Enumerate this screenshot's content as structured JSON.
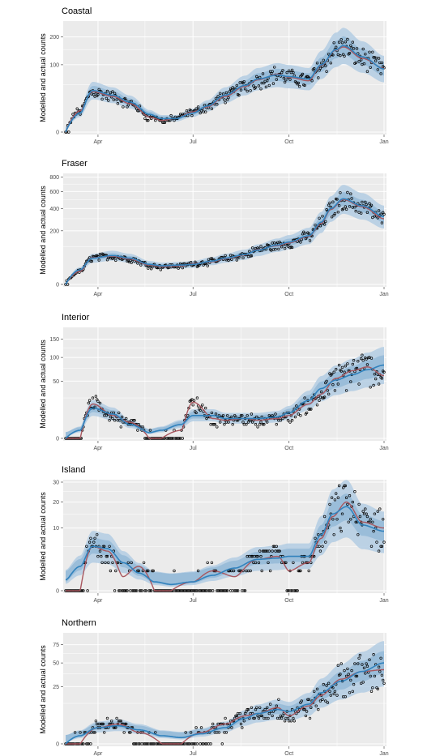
{
  "figure": {
    "ylabel": "Modelled and actual counts",
    "xticks": [
      "Apr",
      "Jul",
      "Oct",
      "Jan"
    ],
    "colors": {
      "panel_bg": "#ebebeb",
      "grid": "#ffffff",
      "ribbon_outer": "#b3cde3",
      "ribbon_inner": "#8fb5d6",
      "model_line": "#3182bd",
      "actual_line": "#a8575f",
      "points": "#000000"
    }
  },
  "chart_data": [
    {
      "type": "line",
      "title": "Coastal",
      "ylabel": "Modelled and actual counts",
      "x_domain": [
        "2021-03-01",
        "2021-12-31"
      ],
      "ytick_values": [
        0,
        100,
        200
      ],
      "ylim_counts": [
        0,
        260
      ],
      "y_scale": "sqrt",
      "x_ticks": [
        "Apr",
        "Jul",
        "Oct",
        "Jan"
      ],
      "series": [
        {
          "key": "model",
          "values_date": [
            "2021-03-01",
            "2021-03-15",
            "2021-03-27",
            "2021-04-15",
            "2021-05-01",
            "2021-05-20",
            "2021-06-01",
            "2021-06-15",
            "2021-07-01",
            "2021-07-15",
            "2021-08-01",
            "2021-08-20",
            "2021-09-01",
            "2021-09-20",
            "2021-10-01",
            "2021-10-20",
            "2021-11-01",
            "2021-11-15",
            "2021-11-22",
            "2021-12-10",
            "2021-12-31"
          ],
          "y": [
            0,
            8,
            38,
            30,
            20,
            7,
            4,
            4,
            8,
            15,
            30,
            48,
            62,
            72,
            68,
            62,
            100,
            150,
            165,
            125,
            88
          ]
        },
        {
          "key": "actual",
          "values_date": [
            "2021-03-01",
            "2021-03-15",
            "2021-03-27",
            "2021-04-15",
            "2021-05-01",
            "2021-05-20",
            "2021-06-01",
            "2021-06-15",
            "2021-07-01",
            "2021-07-15",
            "2021-08-01",
            "2021-08-20",
            "2021-09-01",
            "2021-09-20",
            "2021-10-01",
            "2021-10-20",
            "2021-11-01",
            "2021-11-15",
            "2021-11-22",
            "2021-12-10",
            "2021-12-31"
          ],
          "y": [
            0,
            10,
            36,
            28,
            18,
            5,
            3,
            4,
            9,
            14,
            28,
            46,
            60,
            74,
            66,
            58,
            98,
            148,
            160,
            120,
            90
          ]
        }
      ],
      "band_outer_ratio": [
        0.62,
        1.45
      ],
      "band_inner_ratio": [
        0.8,
        1.22
      ],
      "points_jitter": 0.28
    },
    {
      "type": "line",
      "title": "Fraser",
      "ylabel": "Modelled and actual counts",
      "x_domain": [
        "2021-03-01",
        "2021-12-31"
      ],
      "ytick_values": [
        0,
        200,
        400,
        600,
        800
      ],
      "ylim_counts": [
        0,
        820
      ],
      "y_scale": "sqrt",
      "x_ticks": [
        "Apr",
        "Jul",
        "Oct",
        "Jan"
      ],
      "series": [
        {
          "key": "model",
          "values_date": [
            "2021-03-01",
            "2021-03-15",
            "2021-03-27",
            "2021-04-15",
            "2021-05-01",
            "2021-05-20",
            "2021-06-01",
            "2021-06-20",
            "2021-07-01",
            "2021-07-20",
            "2021-08-01",
            "2021-08-20",
            "2021-09-01",
            "2021-09-20",
            "2021-10-01",
            "2021-10-20",
            "2021-11-01",
            "2021-11-10",
            "2021-11-22",
            "2021-12-10",
            "2021-12-31"
          ],
          "y": [
            0,
            15,
            48,
            58,
            48,
            28,
            24,
            26,
            28,
            38,
            48,
            62,
            82,
            108,
            125,
            165,
            270,
            400,
            510,
            430,
            320
          ]
        },
        {
          "key": "actual",
          "values_date": [
            "2021-03-01",
            "2021-03-15",
            "2021-03-27",
            "2021-04-15",
            "2021-05-01",
            "2021-05-20",
            "2021-06-01",
            "2021-06-20",
            "2021-07-01",
            "2021-07-20",
            "2021-08-01",
            "2021-08-20",
            "2021-09-01",
            "2021-09-20",
            "2021-10-01",
            "2021-10-20",
            "2021-11-01",
            "2021-11-10",
            "2021-11-22",
            "2021-12-10",
            "2021-12-31"
          ],
          "y": [
            0,
            12,
            50,
            55,
            45,
            26,
            22,
            24,
            30,
            36,
            46,
            60,
            85,
            104,
            120,
            160,
            260,
            390,
            500,
            420,
            300
          ]
        }
      ],
      "band_outer_ratio": [
        0.68,
        1.35
      ],
      "band_inner_ratio": [
        0.84,
        1.16
      ],
      "points_jitter": 0.22
    },
    {
      "type": "line",
      "title": "Interior",
      "ylabel": "Modelled and actual counts",
      "x_domain": [
        "2021-03-01",
        "2021-12-31"
      ],
      "ytick_values": [
        0,
        50,
        100,
        150
      ],
      "ylim_counts": [
        0,
        180
      ],
      "y_scale": "sqrt",
      "x_ticks": [
        "Apr",
        "Jul",
        "Oct",
        "Jan"
      ],
      "series": [
        {
          "key": "model",
          "values_date": [
            "2021-03-01",
            "2021-03-15",
            "2021-03-27",
            "2021-04-15",
            "2021-05-01",
            "2021-05-20",
            "2021-06-01",
            "2021-06-20",
            "2021-07-01",
            "2021-07-20",
            "2021-08-01",
            "2021-08-20",
            "2021-09-01",
            "2021-09-20",
            "2021-10-01",
            "2021-10-20",
            "2021-11-01",
            "2021-11-15",
            "2021-12-01",
            "2021-12-15",
            "2021-12-31"
          ],
          "y": [
            0,
            1,
            14,
            9,
            3,
            0.5,
            1,
            3,
            8,
            8,
            6,
            6,
            6,
            7,
            10,
            22,
            38,
            52,
            62,
            72,
            82
          ]
        },
        {
          "key": "actual",
          "values_date": [
            "2021-03-01",
            "2021-03-15",
            "2021-03-27",
            "2021-04-15",
            "2021-05-01",
            "2021-05-20",
            "2021-06-01",
            "2021-06-20",
            "2021-07-01",
            "2021-07-20",
            "2021-08-01",
            "2021-08-20",
            "2021-09-01",
            "2021-09-20",
            "2021-10-01",
            "2021-10-20",
            "2021-11-01",
            "2021-11-15",
            "2021-12-01",
            "2021-12-15",
            "2021-12-31"
          ],
          "y": [
            0,
            0,
            18,
            8,
            4,
            0,
            0,
            1,
            20,
            6,
            5,
            6,
            5,
            6,
            8,
            18,
            30,
            55,
            70,
            78,
            60
          ]
        }
      ],
      "band_outer_ratio": [
        0.55,
        1.55
      ],
      "band_inner_ratio": [
        0.75,
        1.28
      ],
      "points_jitter": 0.45
    },
    {
      "type": "line",
      "title": "Island",
      "ylabel": "Modelled and actual counts",
      "x_domain": [
        "2021-03-01",
        "2021-12-31"
      ],
      "ytick_values": [
        0,
        10,
        20,
        30
      ],
      "ylim_counts": [
        0,
        30
      ],
      "y_scale": "sqrt",
      "x_ticks": [
        "Apr",
        "Jul",
        "Oct",
        "Jan"
      ],
      "series": [
        {
          "key": "model",
          "values_date": [
            "2021-03-01",
            "2021-03-15",
            "2021-03-27",
            "2021-04-10",
            "2021-04-25",
            "2021-05-10",
            "2021-05-25",
            "2021-06-10",
            "2021-07-01",
            "2021-07-20",
            "2021-08-10",
            "2021-09-01",
            "2021-09-20",
            "2021-10-01",
            "2021-10-20",
            "2021-11-01",
            "2021-11-12",
            "2021-11-25",
            "2021-12-10",
            "2021-12-31"
          ],
          "y": [
            0.3,
            1.5,
            5,
            4.5,
            2,
            0.8,
            0.2,
            0.1,
            0.2,
            0.6,
            1.3,
            2.5,
            2.7,
            3,
            3,
            8,
            15,
            18,
            11,
            9
          ]
        },
        {
          "key": "actual",
          "values_date": [
            "2021-03-01",
            "2021-03-15",
            "2021-03-27",
            "2021-04-10",
            "2021-04-25",
            "2021-05-10",
            "2021-05-25",
            "2021-06-10",
            "2021-07-01",
            "2021-07-20",
            "2021-08-10",
            "2021-09-01",
            "2021-09-20",
            "2021-10-01",
            "2021-10-20",
            "2021-11-01",
            "2021-11-12",
            "2021-11-25",
            "2021-12-10",
            "2021-12-31"
          ],
          "y": [
            0,
            0,
            5,
            4,
            0.5,
            1.5,
            0,
            0,
            0.2,
            1,
            0.5,
            2.5,
            3,
            1,
            2,
            7,
            14,
            20,
            12,
            10
          ]
        }
      ],
      "band_outer_ratio": [
        0.4,
        1.7
      ],
      "band_inner_ratio": [
        0.7,
        1.3
      ],
      "points_jitter": 0.6
    },
    {
      "type": "line",
      "title": "Northern",
      "ylabel": "Modelled and actual counts",
      "x_domain": [
        "2021-03-01",
        "2021-12-31"
      ],
      "ytick_values": [
        0,
        25,
        50,
        75
      ],
      "ylim_counts": [
        0,
        90
      ],
      "y_scale": "sqrt",
      "x_ticks": [
        "Apr",
        "Jul",
        "Oct",
        "Jan"
      ],
      "series": [
        {
          "key": "model",
          "values_date": [
            "2021-03-01",
            "2021-03-15",
            "2021-04-01",
            "2021-04-20",
            "2021-05-10",
            "2021-06-01",
            "2021-06-20",
            "2021-07-10",
            "2021-08-01",
            "2021-08-20",
            "2021-09-01",
            "2021-09-20",
            "2021-10-01",
            "2021-10-20",
            "2021-11-01",
            "2021-11-20",
            "2021-12-10",
            "2021-12-31"
          ],
          "y": [
            0,
            0.5,
            2,
            2.5,
            1.5,
            0.5,
            0.3,
            0.8,
            2,
            5,
            7,
            9,
            8,
            12,
            20,
            30,
            40,
            50
          ]
        },
        {
          "key": "actual",
          "values_date": [
            "2021-03-01",
            "2021-03-15",
            "2021-04-01",
            "2021-04-20",
            "2021-05-10",
            "2021-06-01",
            "2021-06-20",
            "2021-07-10",
            "2021-08-01",
            "2021-08-20",
            "2021-09-01",
            "2021-09-20",
            "2021-10-01",
            "2021-10-20",
            "2021-11-01",
            "2021-11-20",
            "2021-12-10",
            "2021-12-31"
          ],
          "y": [
            0,
            0,
            2,
            3,
            1,
            0,
            0,
            1,
            3,
            6,
            7,
            10,
            6,
            11,
            18,
            32,
            40,
            42
          ]
        }
      ],
      "band_outer_ratio": [
        0.5,
        1.6
      ],
      "band_inner_ratio": [
        0.75,
        1.3
      ],
      "points_jitter": 0.5
    }
  ]
}
